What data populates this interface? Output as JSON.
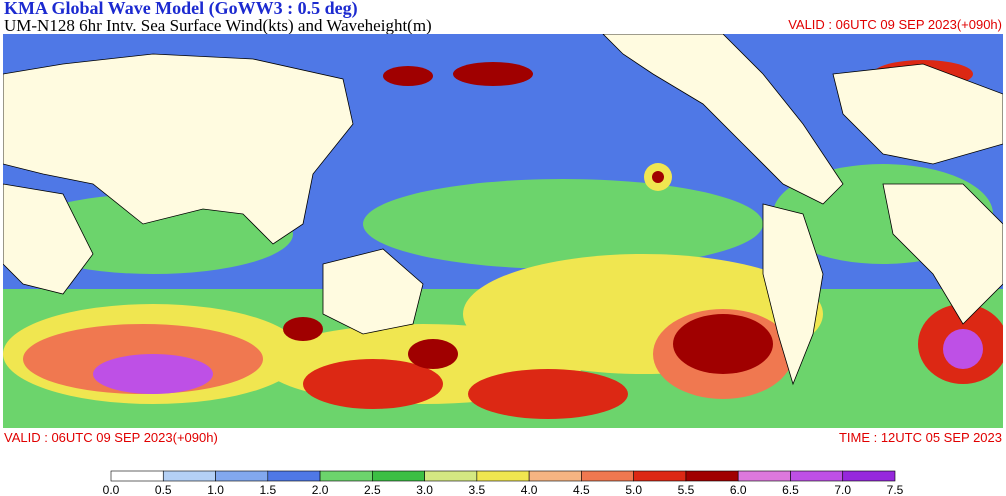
{
  "header": {
    "title": "KMA  Global Wave Model (GoWW3 : 0.5 deg)",
    "subtitle": "UM-N128  6hr Intv. Sea Surface Wind(kts) and Waveheight(m)",
    "valid": "VALID : 06UTC 09 SEP 2023(+090h)"
  },
  "footer": {
    "valid": "VALID : 06UTC 09 SEP 2023(+090h)",
    "time": "TIME : 12UTC 05 SEP 2023"
  },
  "colorbar": {
    "labels": [
      "0.0",
      "0.5",
      "1.0",
      "1.5",
      "2.0",
      "2.5",
      "3.0",
      "3.5",
      "4.0",
      "4.5",
      "5.0",
      "5.5",
      "6.0",
      "6.5",
      "7.0",
      "7.5"
    ],
    "colors": [
      "#ffffff",
      "#b4d0f5",
      "#82a8ee",
      "#4f78e6",
      "#6cd46c",
      "#3cbf44",
      "#d4e882",
      "#f0e650",
      "#f5b482",
      "#f07850",
      "#dc2814",
      "#a00000",
      "#dc78dc",
      "#be50e6",
      "#9628dc"
    ]
  }
}
